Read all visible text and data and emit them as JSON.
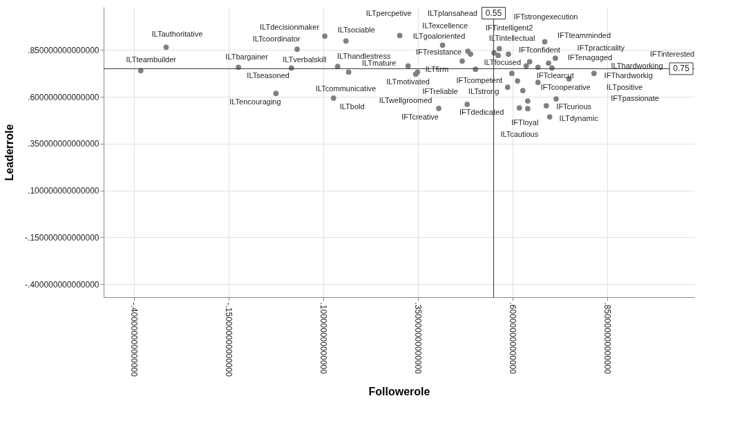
{
  "chart_data": {
    "type": "scatter",
    "xlabel": "Followerole",
    "ylabel": "Leaderrole",
    "xlim": [
      -0.48,
      1.08
    ],
    "ylim": [
      -0.47,
      1.08
    ],
    "xticks": [
      {
        "value": -0.4,
        "label": "-.400000000000000"
      },
      {
        "value": -0.15,
        "label": "-.150000000000000"
      },
      {
        "value": 0.1,
        "label": ".100000000000000"
      },
      {
        "value": 0.35,
        "label": ".350000000000000"
      },
      {
        "value": 0.6,
        "label": ".600000000000000"
      },
      {
        "value": 0.85,
        "label": ".850000000000000"
      }
    ],
    "yticks": [
      {
        "value": -0.4,
        "label": "-.400000000000000"
      },
      {
        "value": -0.15,
        "label": "-.150000000000000"
      },
      {
        "value": 0.1,
        "label": ".100000000000000"
      },
      {
        "value": 0.35,
        "label": ".350000000000000"
      },
      {
        "value": 0.6,
        "label": ".600000000000000"
      },
      {
        "value": 0.85,
        "label": ".850000000000000"
      }
    ],
    "grid": true,
    "marker": "circle",
    "series": [
      {
        "color": "#808080",
        "x": [
          -0.382,
          -0.315,
          -0.124,
          0.016,
          -0.025,
          0.031,
          0.104,
          0.16,
          0.138,
          0.167,
          0.127,
          0.302,
          0.415,
          0.482,
          0.489,
          0.467,
          0.324,
          0.349,
          0.344,
          0.502,
          0.405,
          0.48,
          0.565,
          0.551,
          0.562,
          0.589,
          0.598,
          0.613,
          0.587,
          0.618,
          0.64,
          0.64,
          0.685,
          0.645,
          0.636,
          0.667,
          0.695,
          0.704,
          0.713,
          0.627,
          0.667,
          0.749,
          0.815,
          0.715,
          0.689,
          0.698
        ],
        "values": [
          0.74,
          0.865,
          0.758,
          0.754,
          0.618,
          0.854,
          0.924,
          0.898,
          0.762,
          0.732,
          0.593,
          0.927,
          0.876,
          0.843,
          0.828,
          0.791,
          0.765,
          0.732,
          0.721,
          0.747,
          0.538,
          0.56,
          0.857,
          0.835,
          0.821,
          0.828,
          0.725,
          0.685,
          0.651,
          0.541,
          0.578,
          0.537,
          0.894,
          0.787,
          0.765,
          0.758,
          0.78,
          0.754,
          0.806,
          0.633,
          0.677,
          0.696,
          0.725,
          0.589,
          0.552,
          0.493
        ]
      }
    ],
    "ref_lines": [
      {
        "axis": "x",
        "value": 0.55,
        "label": "0.55",
        "color": "#333333"
      },
      {
        "axis": "y",
        "value": 0.75,
        "label": "0.75",
        "color": "#333333"
      }
    ],
    "annotations": [
      {
        "text": "ILTteambuilder",
        "x": -0.382,
        "y": 0.74
      },
      {
        "text": "ILTauthoritative",
        "x": -0.315,
        "y": 0.865
      },
      {
        "text": "ILTbargainer",
        "x": -0.124,
        "y": 0.758
      },
      {
        "text": "ILTseasoned",
        "x": -0.124,
        "y": 0.758
      },
      {
        "text": "ILTverbalskill",
        "x": 0.016,
        "y": 0.754
      },
      {
        "text": "ILTencouraging",
        "x": -0.025,
        "y": 0.618
      },
      {
        "text": "ILTcoordinator",
        "x": 0.031,
        "y": 0.854
      },
      {
        "text": "ILTdecisionmaker",
        "x": 0.104,
        "y": 0.924
      },
      {
        "text": "ILTsociable",
        "x": 0.16,
        "y": 0.898
      },
      {
        "text": "ILThandlestress",
        "x": 0.138,
        "y": 0.762
      },
      {
        "text": "ILTcommunicative",
        "x": 0.167,
        "y": 0.732
      },
      {
        "text": "ILTbold",
        "x": 0.127,
        "y": 0.593
      },
      {
        "text": "ILTpercpetive",
        "x": 0.302,
        "y": 0.927
      },
      {
        "text": "ILTgoaloriented",
        "x": 0.415,
        "y": 0.876
      },
      {
        "text": "ILTexcellence",
        "x": 0.482,
        "y": 0.843
      },
      {
        "text": "IFTresistance",
        "x": 0.467,
        "y": 0.791
      },
      {
        "text": "ILTmature",
        "x": 0.324,
        "y": 0.765
      },
      {
        "text": "ILTfirm",
        "x": 0.349,
        "y": 0.732
      },
      {
        "text": "ILTmotivated",
        "x": 0.344,
        "y": 0.721
      },
      {
        "text": "ILTfocused",
        "x": 0.502,
        "y": 0.747
      },
      {
        "text": "ILTwellgroomed",
        "x": 0.405,
        "y": 0.538
      },
      {
        "text": "IFTcreative",
        "x": 0.405,
        "y": 0.538
      },
      {
        "text": "IFTdedicated",
        "x": 0.48,
        "y": 0.56
      },
      {
        "text": "IFTintelligent2",
        "x": 0.551,
        "y": 0.835
      },
      {
        "text": "ILTintellectual",
        "x": 0.562,
        "y": 0.821
      },
      {
        "text": "IFTconfident",
        "x": 0.589,
        "y": 0.828
      },
      {
        "text": "IFTcompetent",
        "x": 0.598,
        "y": 0.725
      },
      {
        "text": "ILTstrong",
        "x": 0.613,
        "y": 0.685
      },
      {
        "text": "ILTcautious",
        "x": 0.618,
        "y": 0.541
      },
      {
        "text": "IFTloyal",
        "x": 0.64,
        "y": 0.537
      },
      {
        "text": "IFTteamminded",
        "x": 0.685,
        "y": 0.894
      },
      {
        "text": "IFTenagaged",
        "x": 0.704,
        "y": 0.754
      },
      {
        "text": "IFTpracticality",
        "x": 0.713,
        "y": 0.806
      },
      {
        "text": "IFTcooperative",
        "x": 0.667,
        "y": 0.677
      },
      {
        "text": "IFTclearcut",
        "x": 0.749,
        "y": 0.696
      },
      {
        "text": "IFThardworkig",
        "x": 0.815,
        "y": 0.725
      },
      {
        "text": "IFTcurious",
        "x": 0.689,
        "y": 0.552
      },
      {
        "text": "ILTdynamic",
        "x": 0.698,
        "y": 0.493
      },
      "ILTplansahead",
      "IFTstrongexecution",
      "IFTreliable",
      "ILThardworking",
      "IFTinterested",
      "ILTpositive",
      "IFTpassionate"
    ]
  }
}
